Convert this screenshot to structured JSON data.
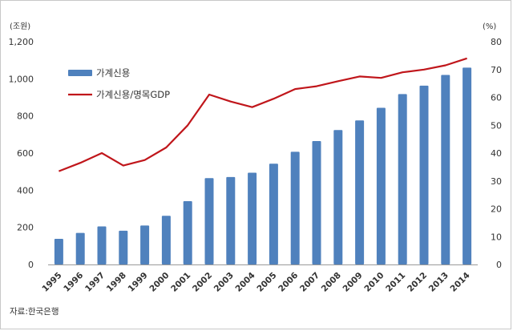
{
  "chart_data": {
    "type": "bar+line",
    "categories": [
      "1995",
      "1996",
      "1997",
      "1998",
      "1999",
      "2000",
      "2001",
      "2002",
      "2003",
      "2004",
      "2005",
      "2006",
      "2007",
      "2008",
      "2009",
      "2010",
      "2011",
      "2012",
      "2013",
      "2014"
    ],
    "series": [
      {
        "name": "가계신용",
        "type": "bar",
        "axis": "left",
        "color": "#4f81bd",
        "values": [
          138,
          170,
          205,
          182,
          210,
          262,
          341,
          465,
          471,
          494,
          543,
          607,
          665,
          724,
          776,
          844,
          918,
          963,
          1021,
          1060
        ]
      },
      {
        "name": "가계신용/명목GDP",
        "type": "line",
        "axis": "right",
        "color": "#c0161b",
        "values": [
          33.5,
          36.5,
          40,
          35.5,
          37.5,
          42,
          50,
          61,
          58.5,
          56.5,
          59.5,
          63,
          64,
          65.8,
          67.5,
          67,
          69,
          70,
          71.5,
          74
        ]
      }
    ],
    "y_left": {
      "unit_label": "(조원)",
      "ylim": [
        0,
        1200
      ],
      "ticks": [
        "0",
        "200",
        "400",
        "600",
        "800",
        "1,000",
        "1,200"
      ]
    },
    "y_right": {
      "unit_label": "(%)",
      "ylim": [
        0,
        80
      ],
      "ticks": [
        "0",
        "10",
        "20",
        "30",
        "40",
        "50",
        "60",
        "70",
        "80"
      ]
    },
    "grid": false,
    "legend": "top-left"
  },
  "source_note": "자료:한국은행"
}
